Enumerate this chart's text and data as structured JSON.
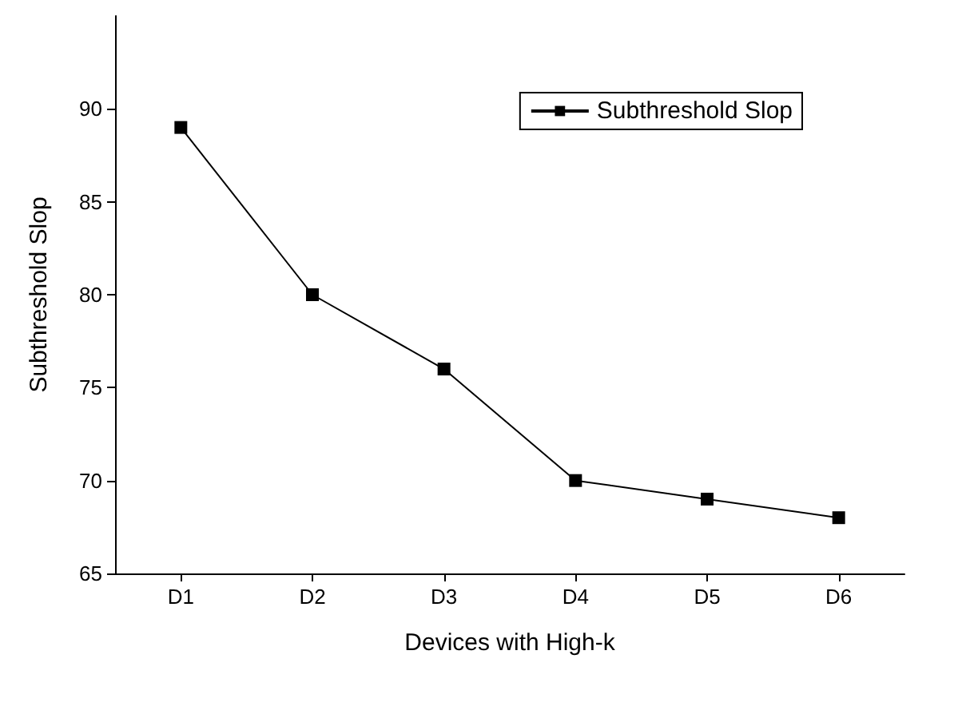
{
  "chart_data": {
    "type": "line",
    "xlabel": "Devices with High-k",
    "ylabel": "Subthreshold Slop",
    "categories": [
      "D1",
      "D2",
      "D3",
      "D4",
      "D5",
      "D6"
    ],
    "series": [
      {
        "name": "Subthreshold Slop",
        "color": "#000000",
        "values": [
          89,
          80,
          76,
          70,
          69,
          68
        ]
      }
    ],
    "ylim": [
      65,
      95
    ],
    "yticks": [
      65,
      70,
      75,
      80,
      85,
      90
    ],
    "grid": false,
    "legend": "top right",
    "marker": "square",
    "line_style": "solid"
  }
}
